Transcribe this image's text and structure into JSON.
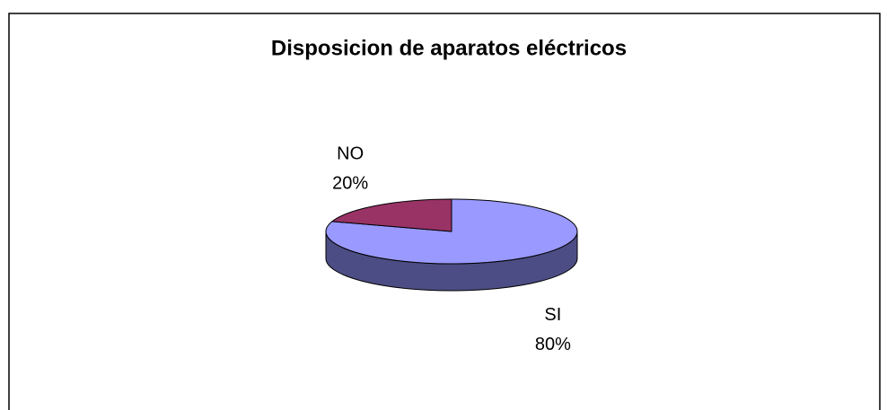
{
  "chart_data": {
    "type": "pie",
    "title": "Disposicion de aparatos eléctricos",
    "categories": [
      "SI",
      "NO"
    ],
    "values": [
      80,
      20
    ],
    "value_labels": [
      "80%",
      "20%"
    ],
    "colors": [
      "#9999ff",
      "#993366"
    ],
    "side_colors": [
      "#4d4d85",
      "#5c1f3d"
    ]
  }
}
